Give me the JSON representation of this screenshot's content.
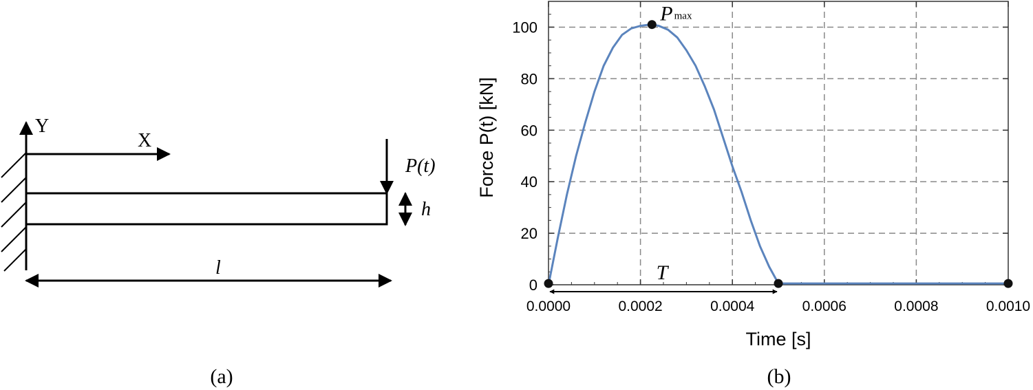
{
  "panel_a": {
    "caption": "(a)",
    "axis_y_label": "Y",
    "axis_x_label": "X",
    "load_label": "P(t)",
    "height_label": "h",
    "length_label": "l"
  },
  "panel_b": {
    "caption": "(b)",
    "peak_label": "P",
    "peak_label_sub": "max",
    "duration_label": "T"
  },
  "chart_data": {
    "type": "line",
    "xlabel": "Time [s]",
    "ylabel": "Force P(t) [kN]",
    "xlim": [
      0,
      0.001
    ],
    "ylim": [
      0,
      110
    ],
    "xticks": [
      0,
      0.0002,
      0.0004,
      0.0006,
      0.0008,
      0.001
    ],
    "xtick_labels": [
      "0.0000",
      "0.0002",
      "0.0004",
      "0.0006",
      "0.0008",
      "0.0010"
    ],
    "yticks": [
      0,
      20,
      40,
      60,
      80,
      100
    ],
    "ytick_labels": [
      "0",
      "20",
      "40",
      "60",
      "80",
      "100"
    ],
    "grid": true,
    "series": [
      {
        "color": "#5b84bd",
        "x": [
          0,
          2e-05,
          4e-05,
          6e-05,
          8e-05,
          0.0001,
          0.00012,
          0.00014,
          0.00016,
          0.00018,
          0.0002,
          0.00022,
          0.000225,
          0.00024,
          0.00026,
          0.00028,
          0.0003,
          0.00032,
          0.00034,
          0.00036,
          0.00038,
          0.0004,
          0.00042,
          0.00044,
          0.00046,
          0.00048,
          0.0005,
          0.00075,
          0.001
        ],
        "y": [
          0,
          18,
          35,
          50,
          63,
          75,
          85,
          92,
          97,
          99.5,
          100.5,
          101,
          101,
          100.5,
          99,
          96,
          91,
          85,
          77,
          68,
          57,
          46,
          36,
          25,
          15,
          7,
          0.5,
          0.5,
          0.5
        ]
      }
    ],
    "markers": [
      {
        "x": 0,
        "y": 0.5
      },
      {
        "x": 0.000225,
        "y": 101
      },
      {
        "x": 0.0005,
        "y": 0.5
      },
      {
        "x": 0.001,
        "y": 0.5
      }
    ],
    "duration_arrow": {
      "from": 0,
      "to": 0.0005
    }
  }
}
